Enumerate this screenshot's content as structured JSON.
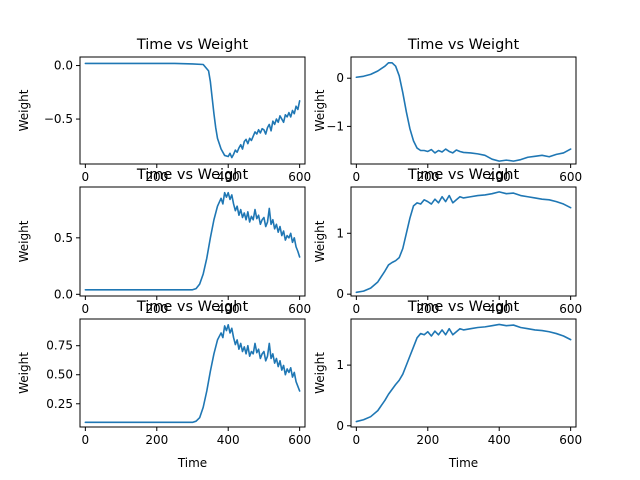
{
  "figure": {
    "background": "#ffffff",
    "line_color": "#1f77b4"
  },
  "chart_data": [
    {
      "type": "line",
      "title": "Time vs Weight",
      "xlabel": "",
      "ylabel": "Weight",
      "xlim": [
        -15,
        615
      ],
      "ylim": [
        -0.92,
        0.08
      ],
      "xticks": [
        {
          "v": 0,
          "l": "0"
        },
        {
          "v": 200,
          "l": "200"
        },
        {
          "v": 400,
          "l": "400"
        },
        {
          "v": 600,
          "l": "600"
        }
      ],
      "yticks": [
        {
          "v": 0,
          "l": "0.0"
        },
        {
          "v": -0.5,
          "l": "−0.5"
        }
      ],
      "grid": false,
      "series": [
        {
          "x": [
            0,
            50,
            100,
            150,
            200,
            250,
            300,
            330,
            345,
            350,
            355,
            360,
            365,
            370,
            380,
            390,
            400,
            405,
            410,
            415,
            420,
            425,
            430,
            435,
            440,
            445,
            450,
            455,
            460,
            465,
            470,
            475,
            480,
            485,
            490,
            495,
            500,
            505,
            510,
            515,
            520,
            525,
            530,
            535,
            540,
            545,
            550,
            555,
            560,
            565,
            570,
            575,
            580,
            585,
            590,
            595,
            600
          ],
          "y": [
            0.02,
            0.02,
            0.02,
            0.02,
            0.02,
            0.02,
            0.015,
            0.01,
            -0.05,
            -0.15,
            -0.3,
            -0.45,
            -0.58,
            -0.68,
            -0.78,
            -0.84,
            -0.85,
            -0.82,
            -0.86,
            -0.83,
            -0.79,
            -0.81,
            -0.77,
            -0.74,
            -0.78,
            -0.71,
            -0.69,
            -0.73,
            -0.68,
            -0.7,
            -0.66,
            -0.62,
            -0.64,
            -0.6,
            -0.63,
            -0.59,
            -0.6,
            -0.64,
            -0.58,
            -0.55,
            -0.61,
            -0.52,
            -0.55,
            -0.5,
            -0.53,
            -0.47,
            -0.5,
            -0.53,
            -0.46,
            -0.48,
            -0.44,
            -0.48,
            -0.42,
            -0.45,
            -0.38,
            -0.41,
            -0.33
          ]
        }
      ]
    },
    {
      "type": "line",
      "title": "Time vs Weight",
      "xlabel": "",
      "ylabel": "Weight",
      "xlim": [
        -15,
        615
      ],
      "ylim": [
        -1.78,
        0.44
      ],
      "xticks": [
        {
          "v": 0,
          "l": "0"
        },
        {
          "v": 200,
          "l": "200"
        },
        {
          "v": 400,
          "l": "400"
        },
        {
          "v": 600,
          "l": "600"
        }
      ],
      "yticks": [
        {
          "v": 0,
          "l": "0"
        },
        {
          "v": -1,
          "l": "−1"
        }
      ],
      "grid": false,
      "series": [
        {
          "x": [
            0,
            20,
            40,
            60,
            80,
            90,
            100,
            110,
            120,
            130,
            140,
            150,
            160,
            170,
            180,
            190,
            200,
            210,
            220,
            230,
            240,
            250,
            260,
            270,
            280,
            290,
            300,
            320,
            340,
            360,
            380,
            400,
            420,
            440,
            460,
            480,
            500,
            520,
            540,
            560,
            580,
            600
          ],
          "y": [
            0.02,
            0.04,
            0.08,
            0.15,
            0.25,
            0.32,
            0.32,
            0.25,
            0.05,
            -0.3,
            -0.7,
            -1.05,
            -1.3,
            -1.45,
            -1.5,
            -1.5,
            -1.52,
            -1.48,
            -1.55,
            -1.5,
            -1.53,
            -1.47,
            -1.52,
            -1.55,
            -1.49,
            -1.52,
            -1.54,
            -1.55,
            -1.57,
            -1.6,
            -1.68,
            -1.72,
            -1.7,
            -1.72,
            -1.69,
            -1.64,
            -1.62,
            -1.6,
            -1.63,
            -1.58,
            -1.55,
            -1.47
          ]
        }
      ]
    },
    {
      "type": "line",
      "title": "Time vs Weight",
      "xlabel": "",
      "ylabel": "Weight",
      "xlim": [
        -15,
        615
      ],
      "ylim": [
        -0.015,
        0.95
      ],
      "xticks": [
        {
          "v": 0,
          "l": "0"
        },
        {
          "v": 200,
          "l": "200"
        },
        {
          "v": 400,
          "l": "400"
        },
        {
          "v": 600,
          "l": "600"
        }
      ],
      "yticks": [
        {
          "v": 0,
          "l": "0.0"
        },
        {
          "v": 0.5,
          "l": "0.5"
        }
      ],
      "grid": false,
      "series": [
        {
          "x": [
            0,
            50,
            100,
            150,
            200,
            250,
            300,
            310,
            320,
            330,
            340,
            350,
            360,
            370,
            380,
            385,
            390,
            395,
            400,
            405,
            410,
            415,
            420,
            425,
            430,
            435,
            440,
            445,
            450,
            455,
            460,
            465,
            470,
            475,
            480,
            485,
            490,
            495,
            500,
            505,
            510,
            515,
            520,
            525,
            530,
            535,
            540,
            545,
            550,
            555,
            560,
            565,
            570,
            575,
            580,
            585,
            590,
            595,
            600
          ],
          "y": [
            0.04,
            0.04,
            0.04,
            0.04,
            0.04,
            0.04,
            0.04,
            0.05,
            0.09,
            0.18,
            0.32,
            0.5,
            0.66,
            0.78,
            0.85,
            0.8,
            0.9,
            0.86,
            0.9,
            0.84,
            0.88,
            0.8,
            0.74,
            0.78,
            0.7,
            0.75,
            0.68,
            0.72,
            0.66,
            0.73,
            0.64,
            0.69,
            0.66,
            0.75,
            0.67,
            0.7,
            0.62,
            0.66,
            0.68,
            0.6,
            0.64,
            0.76,
            0.62,
            0.66,
            0.58,
            0.62,
            0.55,
            0.6,
            0.52,
            0.56,
            0.48,
            0.52,
            0.5,
            0.54,
            0.46,
            0.5,
            0.42,
            0.38,
            0.33
          ]
        }
      ]
    },
    {
      "type": "line",
      "title": "Time vs Weight",
      "xlabel": "",
      "ylabel": "Weight",
      "xlim": [
        -15,
        615
      ],
      "ylim": [
        -0.03,
        1.76
      ],
      "xticks": [
        {
          "v": 0,
          "l": "0"
        },
        {
          "v": 200,
          "l": "200"
        },
        {
          "v": 400,
          "l": "400"
        },
        {
          "v": 600,
          "l": "600"
        }
      ],
      "yticks": [
        {
          "v": 0,
          "l": "0"
        },
        {
          "v": 1,
          "l": "1"
        }
      ],
      "grid": false,
      "series": [
        {
          "x": [
            0,
            20,
            40,
            60,
            80,
            90,
            100,
            110,
            120,
            130,
            140,
            150,
            160,
            170,
            180,
            190,
            200,
            210,
            220,
            230,
            240,
            250,
            260,
            270,
            280,
            290,
            300,
            320,
            340,
            360,
            380,
            400,
            420,
            440,
            460,
            480,
            500,
            520,
            540,
            560,
            580,
            600
          ],
          "y": [
            0.03,
            0.05,
            0.1,
            0.2,
            0.38,
            0.48,
            0.52,
            0.55,
            0.6,
            0.75,
            1.0,
            1.25,
            1.45,
            1.5,
            1.48,
            1.55,
            1.52,
            1.48,
            1.56,
            1.5,
            1.6,
            1.52,
            1.62,
            1.5,
            1.55,
            1.6,
            1.58,
            1.6,
            1.62,
            1.63,
            1.65,
            1.68,
            1.65,
            1.66,
            1.62,
            1.6,
            1.58,
            1.56,
            1.55,
            1.52,
            1.48,
            1.42
          ]
        }
      ]
    },
    {
      "type": "line",
      "title": "Time vs Weight",
      "xlabel": "Time",
      "ylabel": "Weight",
      "xlim": [
        -15,
        615
      ],
      "ylim": [
        0.05,
        0.98
      ],
      "xticks": [
        {
          "v": 0,
          "l": "0"
        },
        {
          "v": 200,
          "l": "200"
        },
        {
          "v": 400,
          "l": "400"
        },
        {
          "v": 600,
          "l": "600"
        }
      ],
      "yticks": [
        {
          "v": 0.25,
          "l": "0.25"
        },
        {
          "v": 0.5,
          "l": "0.50"
        },
        {
          "v": 0.75,
          "l": "0.75"
        }
      ],
      "grid": false,
      "series": [
        {
          "x": [
            0,
            50,
            100,
            150,
            200,
            250,
            300,
            310,
            320,
            330,
            340,
            350,
            360,
            370,
            380,
            385,
            390,
            395,
            400,
            405,
            410,
            415,
            420,
            425,
            430,
            435,
            440,
            445,
            450,
            455,
            460,
            465,
            470,
            475,
            480,
            485,
            490,
            495,
            500,
            505,
            510,
            515,
            520,
            525,
            530,
            535,
            540,
            545,
            550,
            555,
            560,
            565,
            570,
            575,
            580,
            585,
            590,
            595,
            600
          ],
          "y": [
            0.09,
            0.09,
            0.09,
            0.09,
            0.09,
            0.09,
            0.09,
            0.1,
            0.13,
            0.22,
            0.36,
            0.53,
            0.68,
            0.8,
            0.86,
            0.82,
            0.92,
            0.88,
            0.93,
            0.86,
            0.9,
            0.82,
            0.76,
            0.8,
            0.72,
            0.77,
            0.7,
            0.74,
            0.68,
            0.75,
            0.66,
            0.7,
            0.68,
            0.77,
            0.69,
            0.72,
            0.64,
            0.68,
            0.7,
            0.62,
            0.66,
            0.77,
            0.64,
            0.68,
            0.6,
            0.64,
            0.57,
            0.62,
            0.54,
            0.58,
            0.5,
            0.55,
            0.52,
            0.56,
            0.48,
            0.52,
            0.44,
            0.4,
            0.36
          ]
        }
      ]
    },
    {
      "type": "line",
      "title": "Time vs Weight",
      "xlabel": "Time",
      "ylabel": "Weight",
      "xlim": [
        -15,
        615
      ],
      "ylim": [
        -0.02,
        1.76
      ],
      "xticks": [
        {
          "v": 0,
          "l": "0"
        },
        {
          "v": 200,
          "l": "200"
        },
        {
          "v": 400,
          "l": "400"
        },
        {
          "v": 600,
          "l": "600"
        }
      ],
      "yticks": [
        {
          "v": 0,
          "l": "0"
        },
        {
          "v": 1,
          "l": "1"
        }
      ],
      "grid": false,
      "series": [
        {
          "x": [
            0,
            20,
            40,
            60,
            80,
            90,
            100,
            110,
            120,
            130,
            140,
            150,
            160,
            170,
            180,
            190,
            200,
            210,
            220,
            230,
            240,
            250,
            260,
            270,
            280,
            290,
            300,
            320,
            340,
            360,
            380,
            400,
            420,
            440,
            460,
            480,
            500,
            520,
            540,
            560,
            580,
            600
          ],
          "y": [
            0.07,
            0.1,
            0.15,
            0.25,
            0.42,
            0.52,
            0.6,
            0.68,
            0.75,
            0.85,
            1.0,
            1.15,
            1.3,
            1.45,
            1.52,
            1.5,
            1.55,
            1.48,
            1.56,
            1.5,
            1.58,
            1.5,
            1.6,
            1.5,
            1.55,
            1.6,
            1.58,
            1.6,
            1.62,
            1.63,
            1.65,
            1.67,
            1.65,
            1.66,
            1.62,
            1.6,
            1.58,
            1.57,
            1.55,
            1.52,
            1.48,
            1.42
          ]
        }
      ]
    }
  ]
}
